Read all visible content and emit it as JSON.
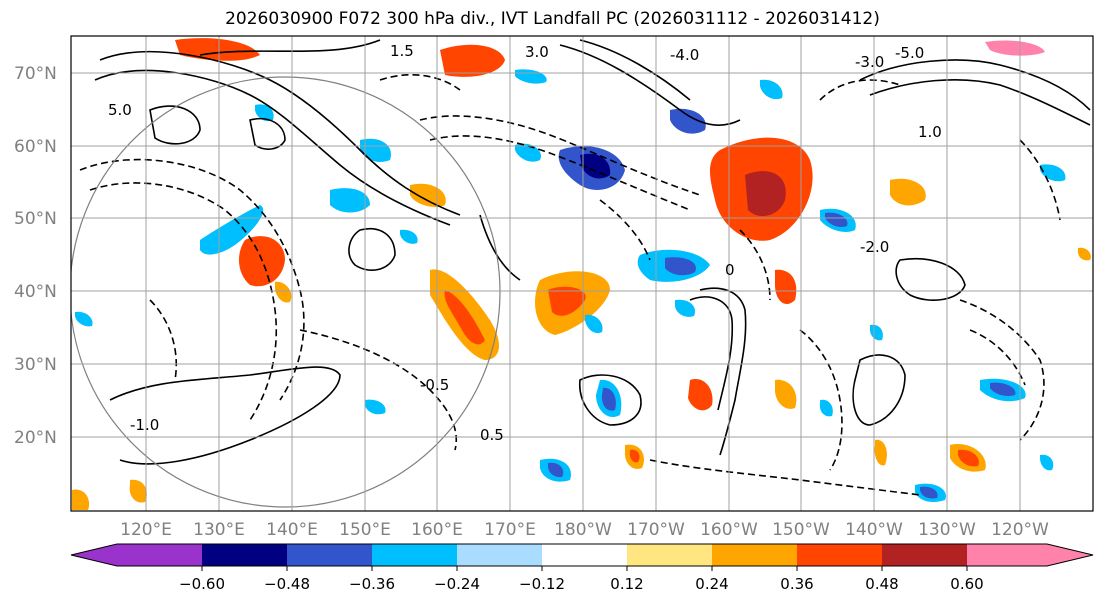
{
  "title": "2026030900 F072 300 hPa div., IVT Landfall PC (2026031112 - 2026031412)",
  "lat_labels": [
    "70°N",
    "60°N",
    "50°N",
    "40°N",
    "30°N",
    "20°N"
  ],
  "lon_labels": [
    "120°E",
    "130°E",
    "140°E",
    "150°E",
    "160°E",
    "170°E",
    "180°W",
    "170°W",
    "160°W",
    "150°W",
    "140°W",
    "130°W",
    "120°W"
  ],
  "colorbar": {
    "colors": [
      "#9933cc",
      "#000080",
      "#3355cc",
      "#00bfff",
      "#aadcff",
      "#ffffff",
      "#ffe680",
      "#ffa500",
      "#ff4500",
      "#b22222",
      "#ff82ab"
    ],
    "tick_labels": [
      "−0.60",
      "−0.48",
      "−0.36",
      "−0.24",
      "−0.12",
      "0.12",
      "0.24",
      "0.36",
      "0.48",
      "0.60"
    ]
  },
  "contour_labels": [
    "5.0",
    "3.0",
    "1.5",
    "1.0",
    "0.5",
    "0",
    "-0.5",
    "-1.0",
    "-2.0",
    "-3.0",
    "-4.0",
    "-5.0"
  ]
}
